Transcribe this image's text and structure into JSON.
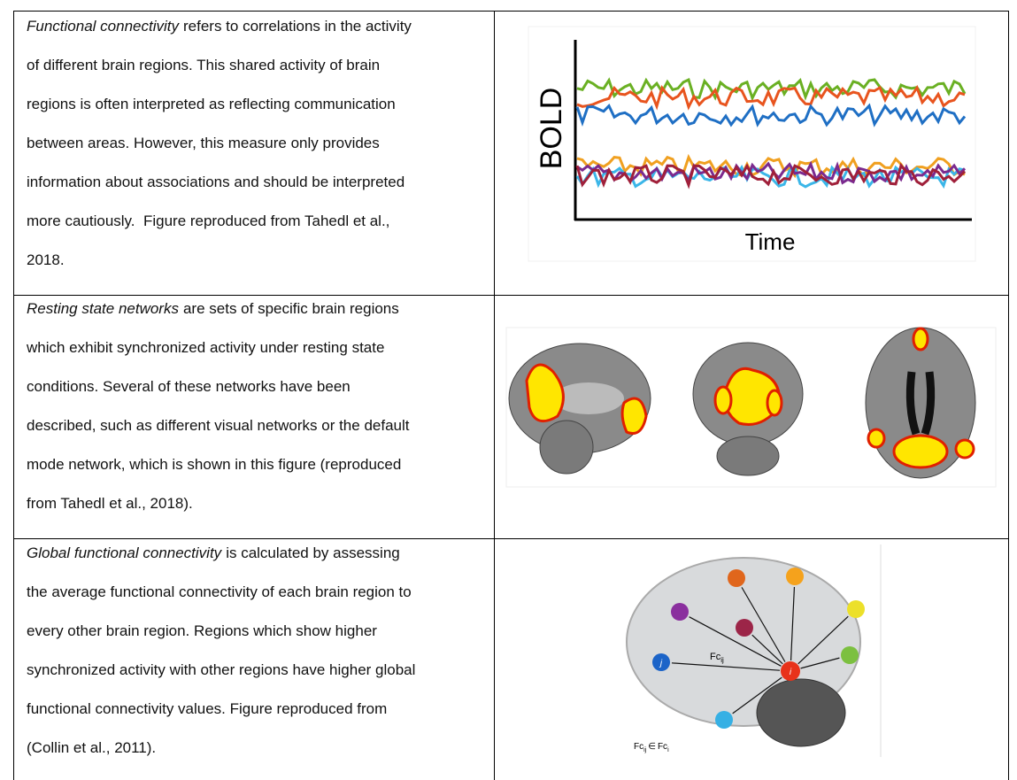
{
  "table": {
    "rows": [
      {
        "term": "Functional connectivity",
        "lines": [
          "refers to correlations in the activity",
          "of different brain regions. This shared activity of brain",
          "regions is often interpreted as reflecting communication",
          "between areas. However, this measure only provides",
          "information about associations and should be interpreted",
          "more cautiously.  Figure reproduced from Tahedl et al.,",
          "2018."
        ],
        "figure": {
          "y_label": "BOLD",
          "x_label": "Time"
        }
      },
      {
        "term": "Resting state networks",
        "lines": [
          "are sets of specific brain regions",
          "which exhibit synchronized activity under resting state",
          "conditions. Several of these networks have been",
          "described, such as different visual networks or the default",
          "mode network, which is shown in this figure (reproduced",
          "from Tahedl et al., 2018)."
        ]
      },
      {
        "term": "Global functional connectivity",
        "lines": [
          "is calculated by assessing",
          "the average functional connectivity of each brain region to",
          "every other brain region. Regions which show higher",
          "synchronized activity with other regions have higher global",
          "functional connectivity values. Figure reproduced from",
          "(Collin et al., 2011)."
        ],
        "figure": {
          "node_i": "i",
          "node_j": "j",
          "edge_label": {
            "base": "Fc",
            "sub": "ij"
          },
          "formula": {
            "base": "Fc",
            "sub": "ij",
            "op": "∈",
            "base2": "Fc",
            "sub2": "i"
          }
        }
      }
    ]
  }
}
